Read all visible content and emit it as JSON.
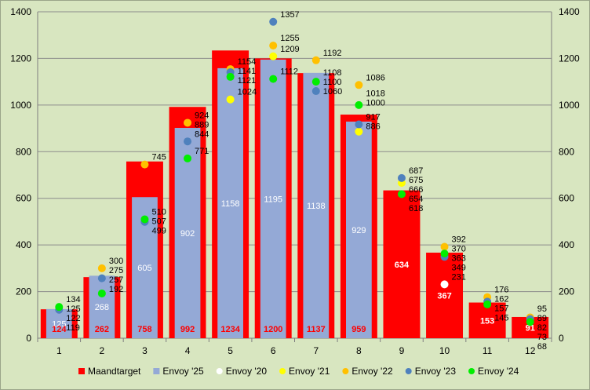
{
  "chart_data": {
    "type": "bar",
    "categories": [
      "1",
      "2",
      "3",
      "4",
      "5",
      "6",
      "7",
      "8",
      "9",
      "10",
      "11",
      "12"
    ],
    "ylim": [
      0,
      1400
    ],
    "yticks": [
      0,
      200,
      400,
      600,
      800,
      1000,
      1200,
      1400
    ],
    "grid": true,
    "legend_position": "bottom",
    "bar_series": [
      {
        "name": "Maandtarget",
        "color": "#ff0000",
        "values": [
          124,
          262,
          758,
          992,
          1234,
          1200,
          1137,
          959,
          634,
          367,
          153,
          91
        ]
      },
      {
        "name": "Envoy '25",
        "color": "#94a9d6",
        "values": [
          125,
          268,
          605,
          902,
          1158,
          1195,
          1138,
          929,
          null,
          null,
          null,
          null
        ]
      }
    ],
    "point_series": [
      {
        "name": "Envoy '20",
        "color": "#ffffff",
        "values": [
          null,
          null,
          null,
          null,
          null,
          null,
          null,
          null,
          null,
          231,
          null,
          null
        ]
      },
      {
        "name": "Envoy '21",
        "color": "#ffff00",
        "values": [
          null,
          null,
          null,
          null,
          1024,
          1209,
          null,
          886,
          666,
          null,
          null,
          null
        ]
      },
      {
        "name": "Envoy '22",
        "color": "#ffc000",
        "values": [
          null,
          300,
          745,
          924,
          1154,
          1255,
          1192,
          1086,
          null,
          392,
          176,
          89
        ]
      },
      {
        "name": "Envoy '23",
        "color": "#4f81bd",
        "values": [
          122,
          257,
          499,
          844,
          1141,
          1357,
          1060,
          917,
          687,
          349,
          157,
          82
        ]
      },
      {
        "name": "Envoy '24",
        "color": "#00ee00",
        "values": [
          134,
          192,
          510,
          771,
          1121,
          1112,
          1100,
          1000,
          618,
          363,
          145,
          70
        ]
      }
    ],
    "data_labels": [
      {
        "x": 1,
        "text": "125"
      },
      {
        "x": 1,
        "text": "122"
      },
      {
        "x": 1,
        "text": "134"
      },
      {
        "x": 1,
        "text": "119"
      },
      {
        "x": 2,
        "text": "300"
      },
      {
        "x": 2,
        "text": "275"
      },
      {
        "x": 2,
        "text": "257"
      },
      {
        "x": 2,
        "text": "192"
      },
      {
        "x": 3,
        "text": "745"
      },
      {
        "x": 3,
        "text": "507"
      },
      {
        "x": 3,
        "text": "510"
      },
      {
        "x": 3,
        "text": "499"
      },
      {
        "x": 4,
        "text": "924"
      },
      {
        "x": 4,
        "text": "889"
      },
      {
        "x": 4,
        "text": "844"
      },
      {
        "x": 4,
        "text": "771"
      },
      {
        "x": 5,
        "text": "1154"
      },
      {
        "x": 5,
        "text": "1141"
      },
      {
        "x": 5,
        "text": "1121"
      },
      {
        "x": 5,
        "text": "1024"
      },
      {
        "x": 6,
        "text": "1357"
      },
      {
        "x": 6,
        "text": "1255"
      },
      {
        "x": 6,
        "text": "1209"
      },
      {
        "x": 6,
        "text": "1112"
      },
      {
        "x": 7,
        "text": "1192"
      },
      {
        "x": 7,
        "text": "1108"
      },
      {
        "x": 7,
        "text": "1100"
      },
      {
        "x": 7,
        "text": "1060"
      },
      {
        "x": 8,
        "text": "1086"
      },
      {
        "x": 8,
        "text": "1018"
      },
      {
        "x": 8,
        "text": "1000"
      },
      {
        "x": 8,
        "text": "917"
      },
      {
        "x": 8,
        "text": "886"
      },
      {
        "x": 9,
        "text": "687"
      },
      {
        "x": 9,
        "text": "675"
      },
      {
        "x": 9,
        "text": "666"
      },
      {
        "x": 9,
        "text": "654"
      },
      {
        "x": 9,
        "text": "618"
      },
      {
        "x": 10,
        "text": "392"
      },
      {
        "x": 10,
        "text": "370"
      },
      {
        "x": 10,
        "text": "349"
      },
      {
        "x": 10,
        "text": "363"
      },
      {
        "x": 10,
        "text": "231"
      },
      {
        "x": 11,
        "text": "176"
      },
      {
        "x": 11,
        "text": "162"
      },
      {
        "x": 11,
        "text": "157"
      },
      {
        "x": 11,
        "text": "145"
      },
      {
        "x": 12,
        "text": "95"
      },
      {
        "x": 12,
        "text": "89"
      },
      {
        "x": 12,
        "text": "82"
      },
      {
        "x": 12,
        "text": "73"
      },
      {
        "x": 12,
        "text": "68"
      }
    ]
  }
}
